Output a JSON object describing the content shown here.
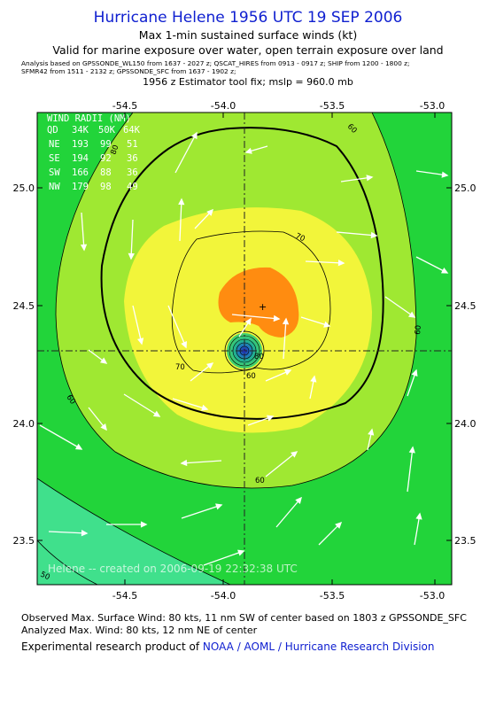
{
  "header": {
    "title": "Hurricane Helene 1956 UTC 19 SEP 2006",
    "subtitle1": "Max 1-min sustained surface winds (kt)",
    "subtitle2": "Valid for marine exposure over water, open terrain exposure over land",
    "analysis_line1": "Analysis based on   GPSSONDE_WL150 from 1637 - 2027 z;  QSCAT_HIRES from 0913 - 0917 z;  SHIP from 1200 - 1800 z;",
    "analysis_line2": "SFMR42 from 1511 - 2132 z;  GPSSONDE_SFC from 1637 - 1902 z;",
    "fix_line": "1956 z Estimator tool fix; mslp = 960.0 mb"
  },
  "map": {
    "x_ticks": [
      "-54.5",
      "-54.0",
      "-53.5",
      "-53.0"
    ],
    "y_ticks": [
      "25.0",
      "24.5",
      "24.0",
      "23.5"
    ],
    "contour_labels": [
      "60",
      "70",
      "80",
      "60",
      "60",
      "60",
      "70",
      "50",
      "60",
      "80"
    ],
    "watermark": "Helene -- created on 2006-09-19 22:32:38 UTC",
    "wind_radii": {
      "title": "WIND RADII (NM)",
      "header": [
        "QD",
        "34K",
        "50K",
        "64K"
      ],
      "rows": [
        [
          "NE",
          "193",
          "99",
          "51"
        ],
        [
          "SE",
          "194",
          "92",
          "36"
        ],
        [
          "SW",
          "166",
          "88",
          "36"
        ],
        [
          "NW",
          "179",
          "98",
          "49"
        ]
      ]
    },
    "colors": {
      "wind_40_50": "#40e08c",
      "wind_50_60": "#22d43a",
      "wind_60_70": "#9fe832",
      "wind_70_80": "#f2f53a",
      "wind_80_plus": "#ff8c10"
    }
  },
  "footer": {
    "line1": "Observed Max. Surface Wind: 80 kts, 11 nm SW of center based on 1803 z GPSSONDE_SFC",
    "line2": "Analyzed Max. Wind: 80 kts, 12 nm NE of center",
    "line3_prefix": "Experimental research product of ",
    "line3_link": "NOAA / AOML / Hurricane Research Division"
  }
}
